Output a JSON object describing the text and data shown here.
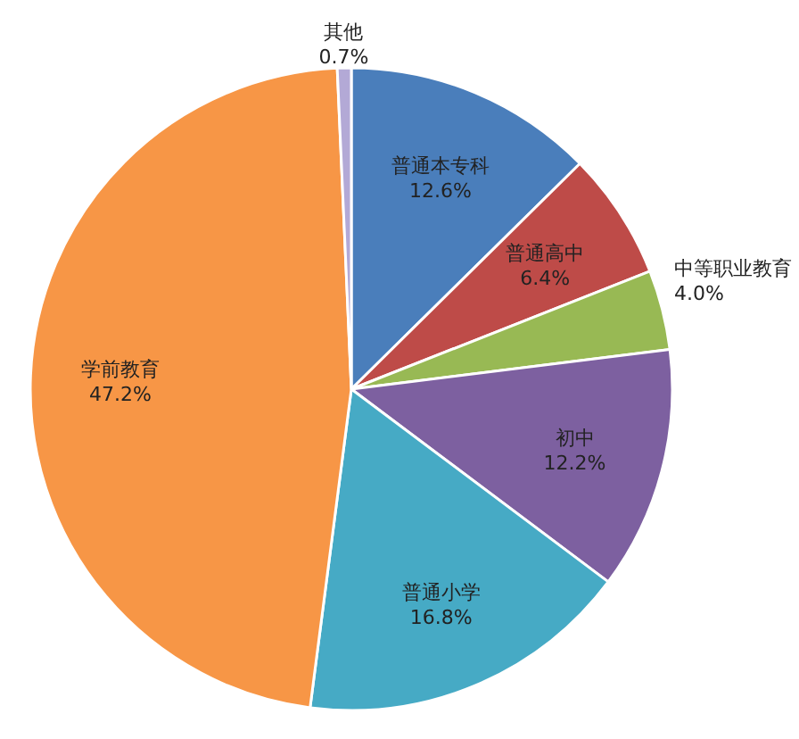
{
  "chart_data": {
    "type": "pie",
    "categories": [
      "普通本专科",
      "普通高中",
      "中等职业教育",
      "初中",
      "普通小学",
      "学前教育",
      "其他"
    ],
    "values": [
      12.6,
      6.4,
      4.0,
      12.2,
      16.8,
      47.2,
      0.7
    ],
    "value_labels": [
      "12.6%",
      "6.4%",
      "4.0%",
      "12.2%",
      "16.8%",
      "47.2%",
      "0.7%"
    ],
    "colors": [
      "#4a7ebb",
      "#be4b48",
      "#98b954",
      "#7d60a0",
      "#46aac5",
      "#f79646",
      "#b3a9d6"
    ],
    "legend": false
  }
}
